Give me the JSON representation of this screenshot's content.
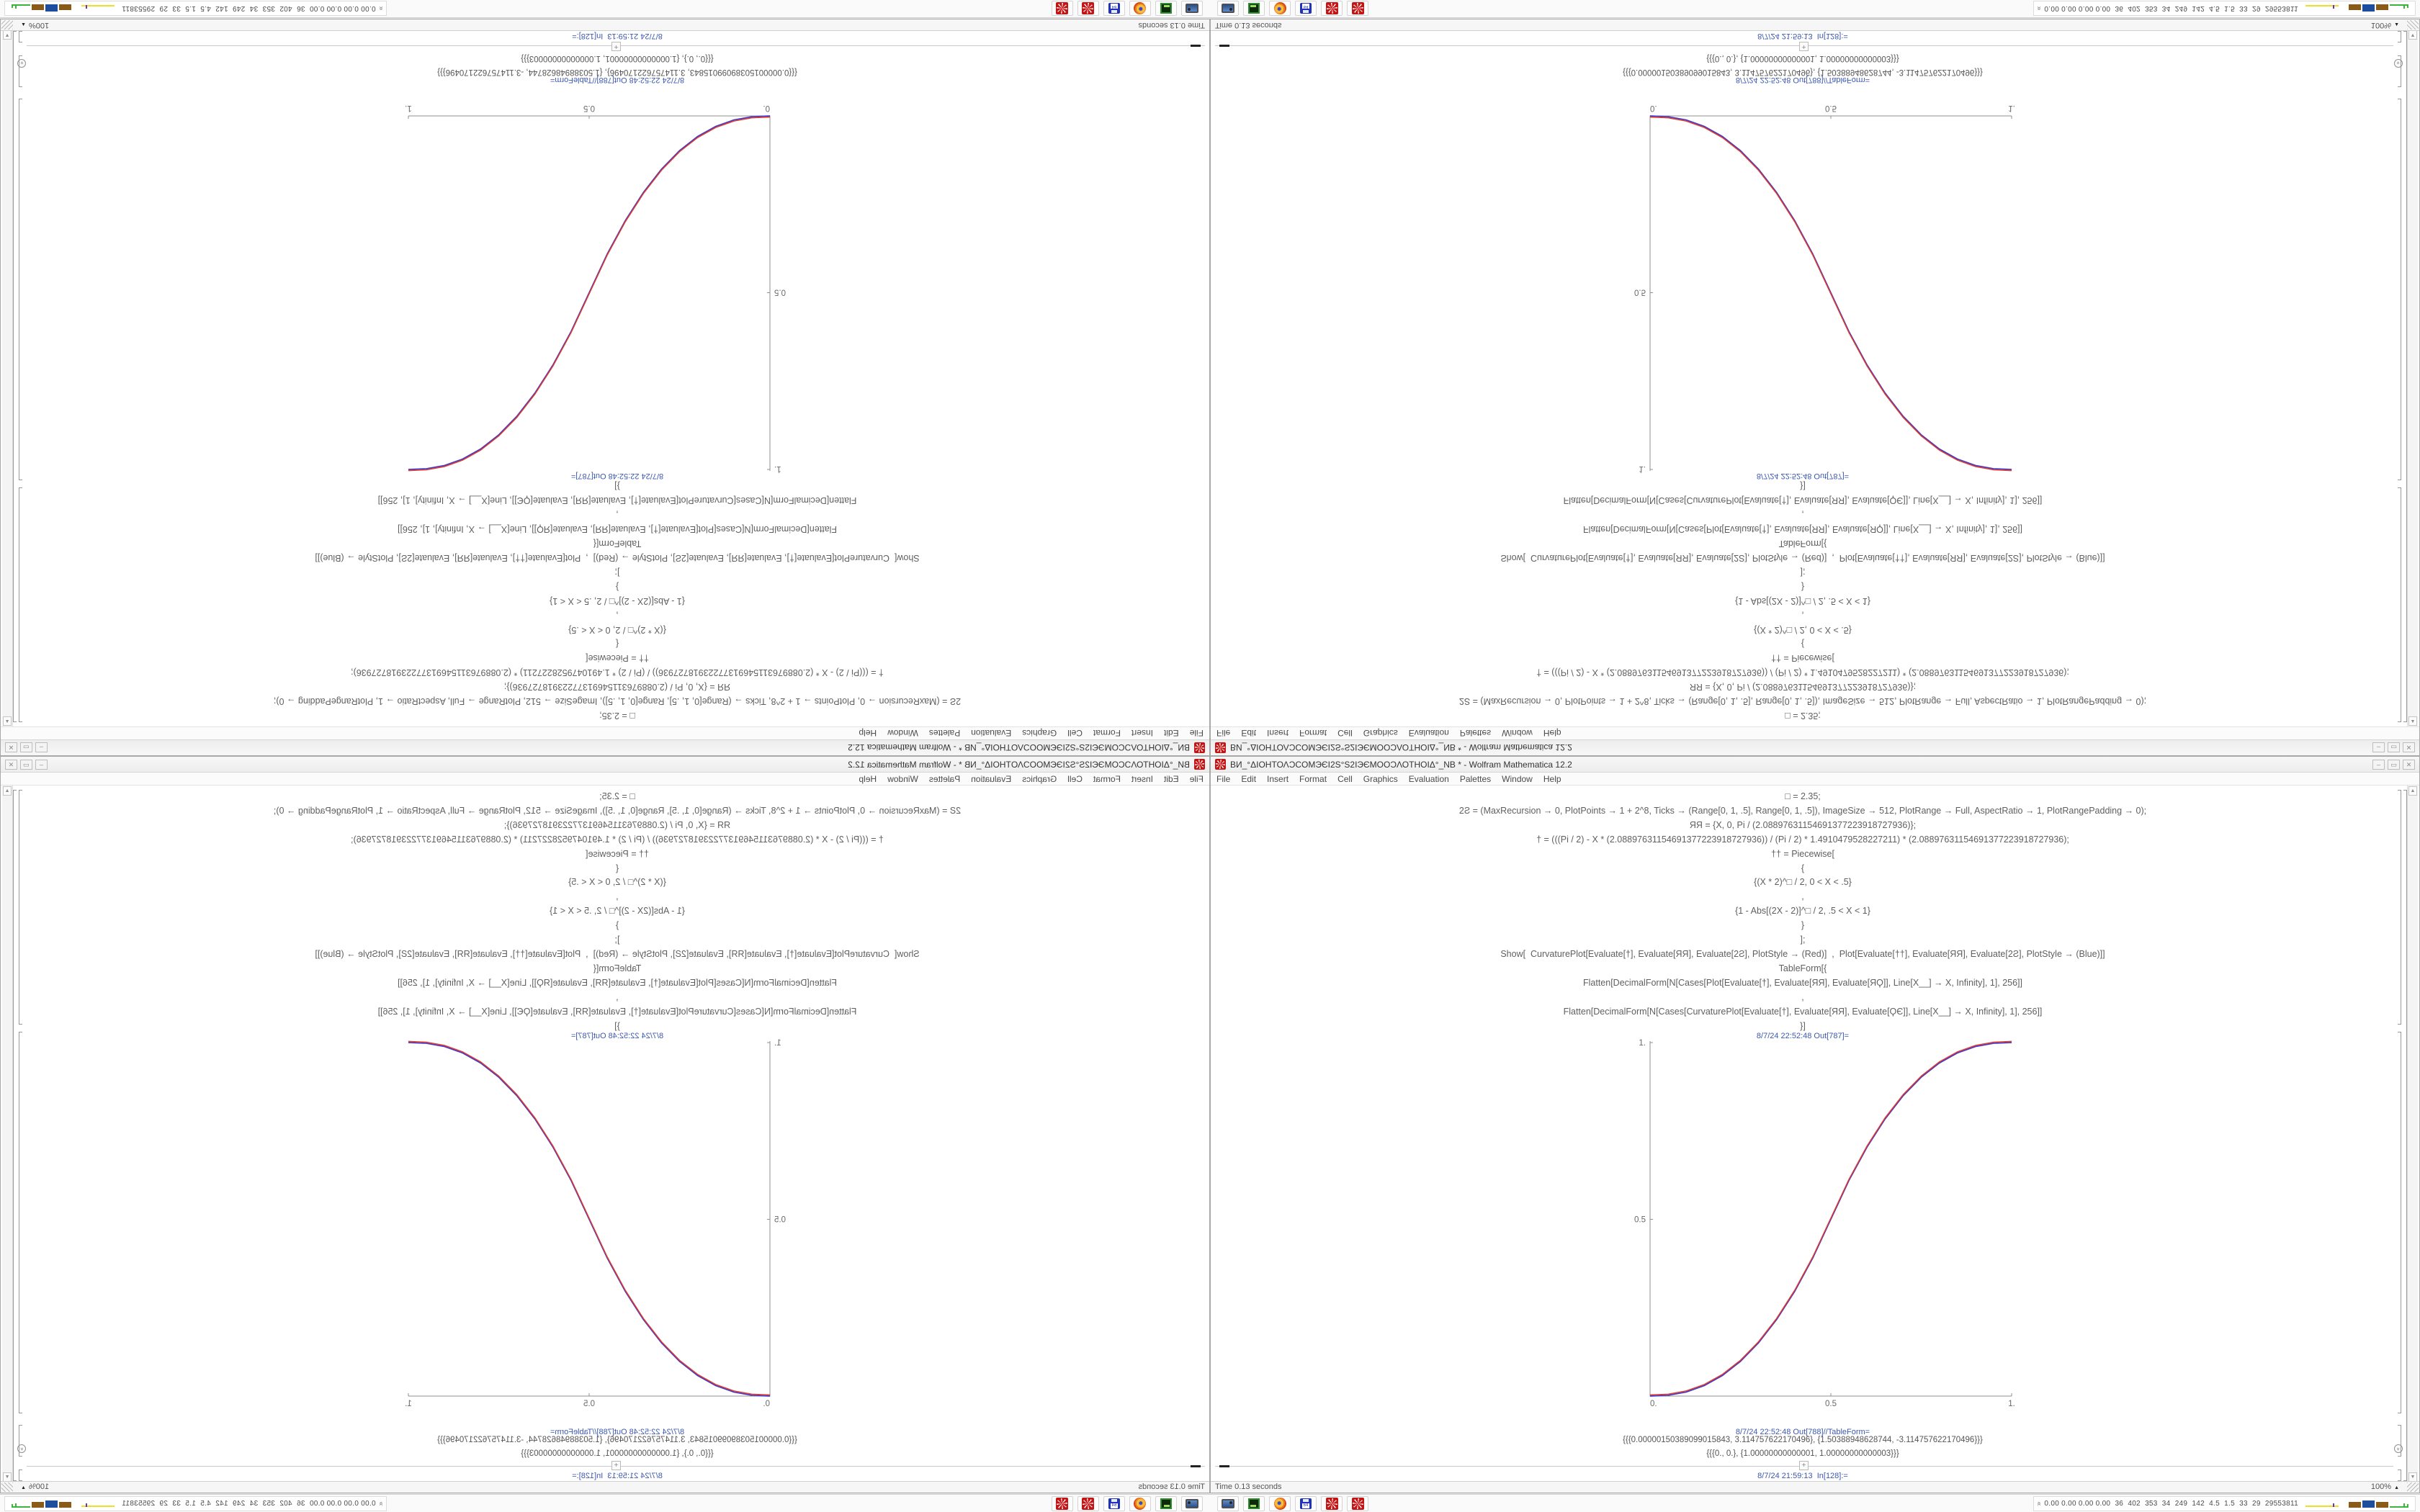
{
  "window": {
    "title": "ВИ_°ΔΙΟΗΤΟΛƆCOМЭЄІ2Ѕ°Ѕ2ІЭЄМООƆΛΟΤΗΟΙΔ°_NB * - Wolfram Mathematica 12.2",
    "menus": [
      "File",
      "Edit",
      "Insert",
      "Format",
      "Cell",
      "Graphics",
      "Evaluation",
      "Palettes",
      "Window",
      "Help"
    ],
    "buttons": {
      "minimize": "–",
      "maximize": "▭",
      "close": "✕"
    }
  },
  "notebook": {
    "input_lines": [
      "□ = 2.35;",
      "2Ƨ = (MaxRecursion → 0, PlotPoints → 1 + 2^8, Ticks → (Range[0, 1, .5], Range[0, 1, .5]), ImageSize → 512, PlotRange → Full, AspectRatio → 1, PlotRangePadding → 0);",
      "ЯЯ = {X, 0, Pi / (2.08897631154691377223918727936)};",
      "† = (((Pi / 2) - X * (2.08897631154691377223918727936)) / (Pi / 2) * 1.4910479528227211) * (2.08897631154691377223918727936);",
      "†† = Piecewise[",
      "{",
      "{(X * 2)^□ / 2, 0 < X < .5}",
      ",",
      "{1 - Abs[(2X - 2)]^□ / 2, .5 < X < 1}",
      "}",
      "];",
      "Show[  CurvaturePlot[Evaluate[†], Evaluate[ЯЯ], Evaluate[2Ƨ], PlotStyle → (Red)]  ,  Plot[Evaluate[††], Evaluate[ЯЯ], Evaluate[2Ƨ], PlotStyle → (Blue)]]",
      "TableForm[{",
      "Flatten[DecimalForm[N[Cases[Plot[Evaluate[†], Evaluate[ЯЯ], Evaluate[ЯϘ]], Line[X__] → X, Infinity], 1], 256]]",
      ",",
      "Flatten[DecimalForm[N[Cases[CurvaturePlot[Evaluate[†], Evaluate[ЯЯ], Evaluate[ϘЄ]], Line[X__] → X, Infinity], 1], 256]]",
      "}]"
    ],
    "out_plot_label": "8/7/24 22:52:48 Out[787]=",
    "out_table_label": "8/7/24 22:52:48 Out[788]//TableForm=",
    "table_rows": [
      "{{{0.00000150389099015843, 3.114757622170496}, {1.50388948628744, -3.114757622170496}}}",
      "{{{0., 0.}, {1.00000000000001, 1.00000000000003}}}"
    ],
    "next_in_label": "8/7/24 21:59:13  In[128]:=",
    "status_time": "Time 0.13 seconds",
    "status_zoom": "100%"
  },
  "taskbar": {
    "icons": [
      "screenshot-tool",
      "terminal",
      "firefox",
      "floppy-64",
      "mathematica-1",
      "mathematica-2"
    ],
    "tray_numbers": "0.00 0.00 0.00 0.00  36  402  353  34  249  142  4.5  1.5  33  29  29553811"
  },
  "chart_data": {
    "type": "line",
    "title": "",
    "xlabel": "",
    "ylabel": "",
    "xlim": [
      0,
      1
    ],
    "ylim": [
      0,
      1
    ],
    "xticks": [
      0,
      0.5,
      1
    ],
    "yticks": [
      0,
      0.5,
      1
    ],
    "xtick_labels": [
      "0.",
      "0.5",
      "1."
    ],
    "ytick_labels": [
      "0.",
      "0.5",
      "1."
    ],
    "grid": false,
    "legend_position": "none",
    "function_note": "piecewise smoothstep: y=(2x)^2.35/2 for 0<x<0.5 ; y=1-(2-2x)^2.35/2 for 0.5<x<1 ; exponent from □=2.35",
    "exponent": 2.35,
    "x": [
      0,
      0.05,
      0.1,
      0.15,
      0.2,
      0.25,
      0.3,
      0.35,
      0.4,
      0.45,
      0.5,
      0.55,
      0.6,
      0.65,
      0.7,
      0.75,
      0.8,
      0.85,
      0.9,
      0.95,
      1
    ],
    "series": [
      {
        "name": "CurvaturePlot-red",
        "color": "#dc3a30",
        "values": [
          0,
          0.0022,
          0.0114,
          0.0295,
          0.058,
          0.098,
          0.1505,
          0.2163,
          0.296,
          0.3903,
          0.5,
          0.6097,
          0.704,
          0.7837,
          0.8495,
          0.902,
          0.942,
          0.9705,
          0.9886,
          0.9978,
          1
        ]
      },
      {
        "name": "Plot-blue",
        "color": "#4338c8",
        "values": [
          0,
          0.0022,
          0.0114,
          0.0295,
          0.058,
          0.098,
          0.1505,
          0.2163,
          0.296,
          0.3903,
          0.5,
          0.6097,
          0.704,
          0.7837,
          0.8495,
          0.902,
          0.942,
          0.9705,
          0.9886,
          0.9978,
          1
        ]
      }
    ],
    "axes_color": "#8f8f8f"
  }
}
